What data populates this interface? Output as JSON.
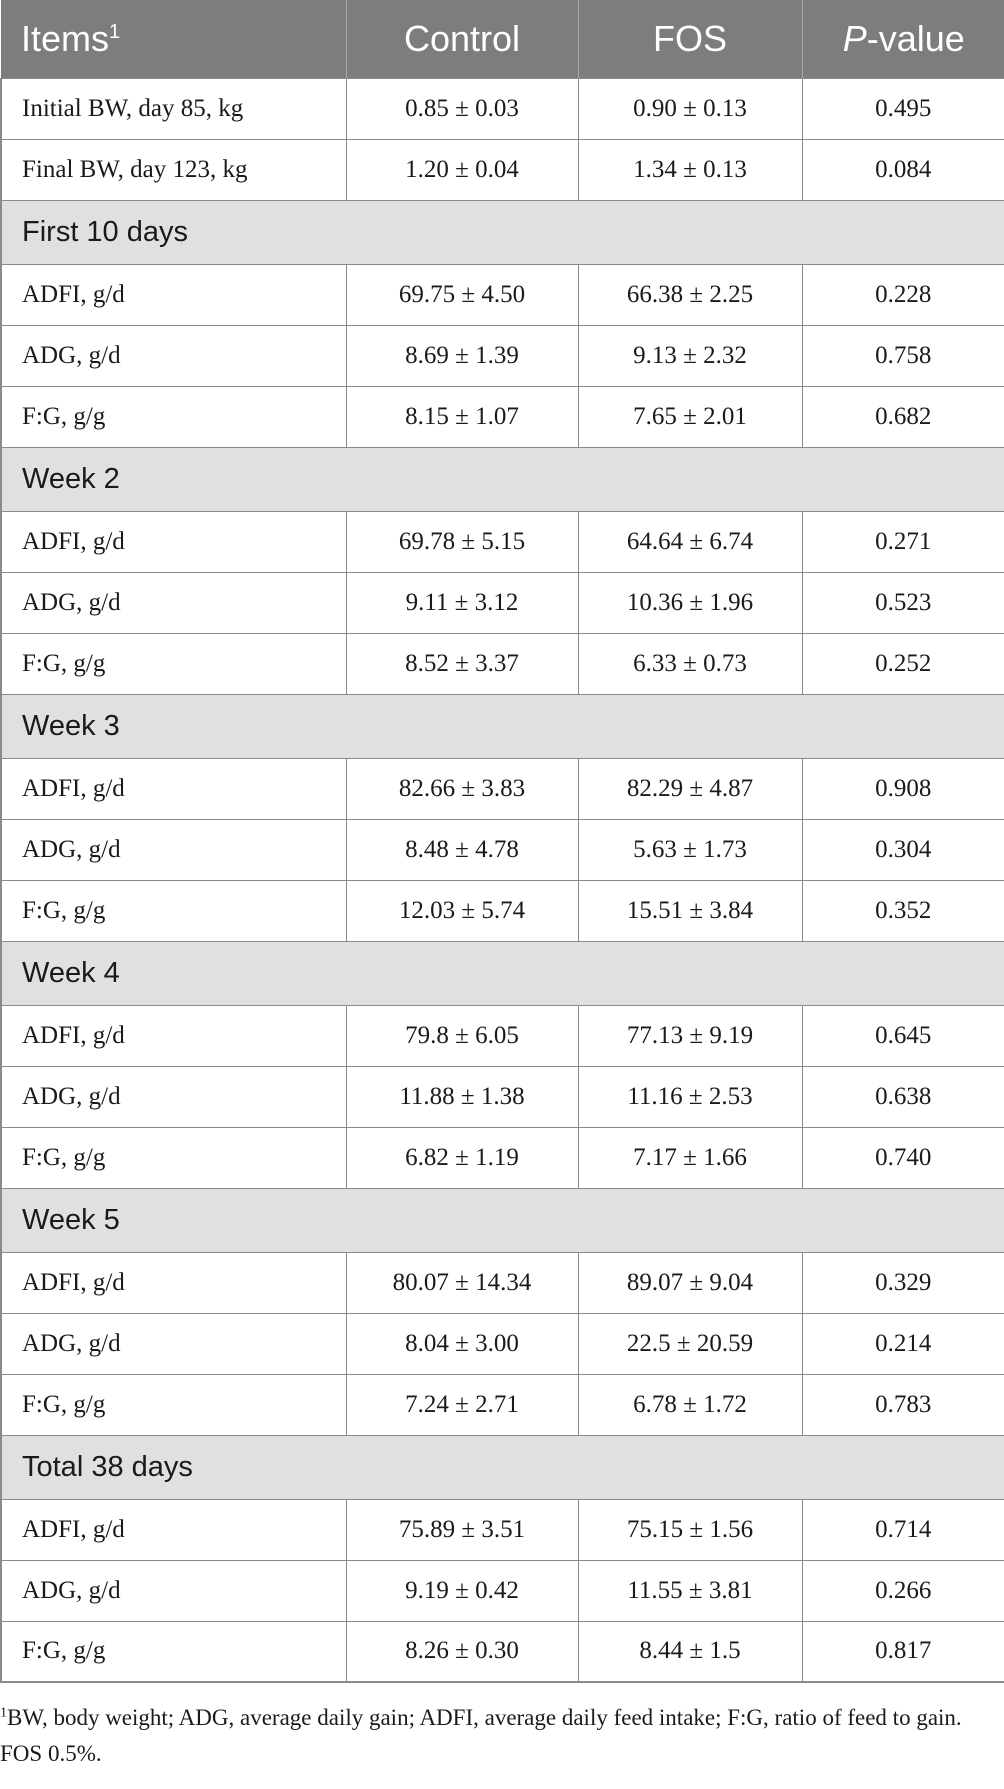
{
  "header": {
    "items": "Items",
    "items_sup": "1",
    "control": "Control",
    "fos": "FOS",
    "p_italic": "P",
    "p_rest": "-value"
  },
  "rows": [
    {
      "type": "data",
      "label": "Initial BW, day 85, kg",
      "control": "0.85 ± 0.03",
      "fos": "0.90 ± 0.13",
      "p": "0.495"
    },
    {
      "type": "data",
      "label": "Final BW, day 123, kg",
      "control": "1.20 ± 0.04",
      "fos": "1.34 ± 0.13",
      "p": "0.084"
    },
    {
      "type": "section",
      "label": "First 10 days"
    },
    {
      "type": "data",
      "label": "ADFI, g/d",
      "control": "69.75 ± 4.50",
      "fos": "66.38 ± 2.25",
      "p": "0.228"
    },
    {
      "type": "data",
      "label": "ADG, g/d",
      "control": "8.69 ± 1.39",
      "fos": "9.13 ± 2.32",
      "p": "0.758"
    },
    {
      "type": "data",
      "label": "F:G, g/g",
      "control": "8.15 ± 1.07",
      "fos": "7.65 ± 2.01",
      "p": "0.682"
    },
    {
      "type": "section",
      "label": "Week 2"
    },
    {
      "type": "data",
      "label": "ADFI, g/d",
      "control": "69.78 ± 5.15",
      "fos": "64.64 ± 6.74",
      "p": "0.271"
    },
    {
      "type": "data",
      "label": "ADG, g/d",
      "control": "9.11 ± 3.12",
      "fos": "10.36 ± 1.96",
      "p": "0.523"
    },
    {
      "type": "data",
      "label": "F:G, g/g",
      "control": "8.52 ± 3.37",
      "fos": "6.33 ± 0.73",
      "p": "0.252"
    },
    {
      "type": "section",
      "label": "Week 3"
    },
    {
      "type": "data",
      "label": "ADFI, g/d",
      "control": "82.66 ± 3.83",
      "fos": "82.29 ± 4.87",
      "p": "0.908"
    },
    {
      "type": "data",
      "label": "ADG, g/d",
      "control": "8.48 ± 4.78",
      "fos": "5.63 ± 1.73",
      "p": "0.304"
    },
    {
      "type": "data",
      "label": "F:G, g/g",
      "control": "12.03 ± 5.74",
      "fos": "15.51 ± 3.84",
      "p": "0.352"
    },
    {
      "type": "section",
      "label": "Week 4"
    },
    {
      "type": "data",
      "label": "ADFI, g/d",
      "control": "79.8 ± 6.05",
      "fos": "77.13 ± 9.19",
      "p": "0.645"
    },
    {
      "type": "data",
      "label": "ADG, g/d",
      "control": "11.88 ± 1.38",
      "fos": "11.16 ± 2.53",
      "p": "0.638"
    },
    {
      "type": "data",
      "label": "F:G, g/g",
      "control": "6.82 ± 1.19",
      "fos": "7.17 ± 1.66",
      "p": "0.740"
    },
    {
      "type": "section",
      "label": "Week 5"
    },
    {
      "type": "data",
      "label": "ADFI, g/d",
      "control": "80.07 ± 14.34",
      "fos": "89.07 ± 9.04",
      "p": "0.329"
    },
    {
      "type": "data",
      "label": "ADG, g/d",
      "control": "8.04 ± 3.00",
      "fos": "22.5 ± 20.59",
      "p": "0.214"
    },
    {
      "type": "data",
      "label": "F:G, g/g",
      "control": "7.24 ± 2.71",
      "fos": "6.78 ± 1.72",
      "p": "0.783"
    },
    {
      "type": "section",
      "label": "Total 38 days"
    },
    {
      "type": "data",
      "label": "ADFI, g/d",
      "control": "75.89 ± 3.51",
      "fos": "75.15 ± 1.56",
      "p": "0.714"
    },
    {
      "type": "data",
      "label": "ADG, g/d",
      "control": "9.19 ± 0.42",
      "fos": "11.55 ± 3.81",
      "p": "0.266"
    },
    {
      "type": "data",
      "label": "F:G, g/g",
      "control": "8.26 ± 0.30",
      "fos": "8.44 ± 1.5",
      "p": "0.817"
    }
  ],
  "footnote": {
    "sup": "1",
    "text": "BW, body weight; ADG, average daily gain; ADFI, average daily feed intake; F:G, ratio of feed to gain. FOS 0.5%."
  },
  "colors": {
    "header_bg": "#7d7d7d",
    "section_bg": "#e0e0e0",
    "border": "#8a8a8a"
  }
}
